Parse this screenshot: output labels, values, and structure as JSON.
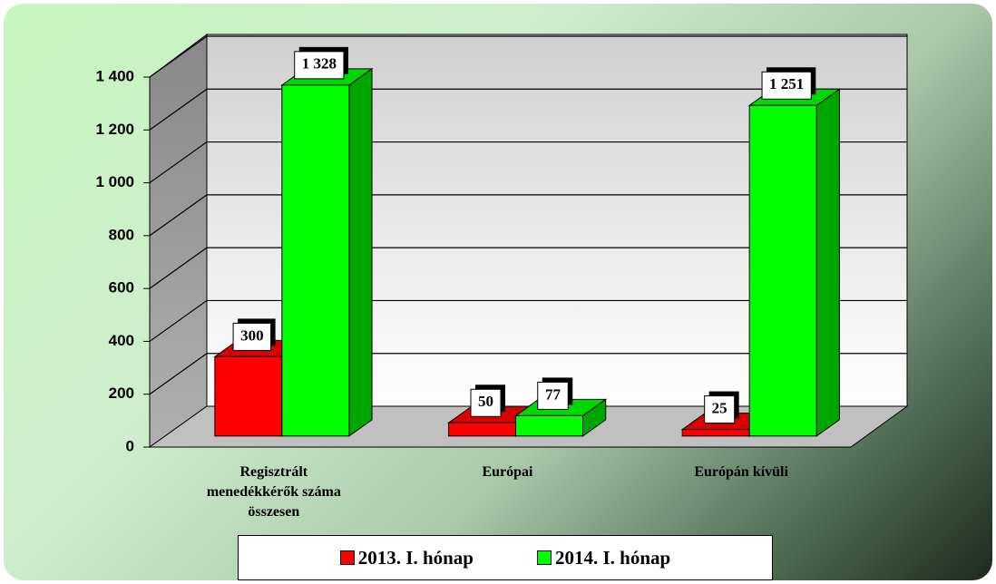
{
  "chart_data": {
    "type": "bar3d",
    "categories": [
      "Regisztrált menedékkérők száma összesen",
      "Európai",
      "Európán kívüli"
    ],
    "series": [
      {
        "name": "2013. I. hónap",
        "color": "#ff0000",
        "values": [
          300,
          50,
          25
        ]
      },
      {
        "name": "2014. I. hónap",
        "color": "#00ff00",
        "values": [
          1328,
          77,
          1251
        ],
        "value_labels": [
          "1 328",
          "77",
          "1 251"
        ]
      }
    ],
    "ylim": [
      0,
      1400
    ],
    "yticks": [
      0,
      200,
      400,
      600,
      800,
      {
        "value": 1000,
        "label": "1 000"
      },
      {
        "value": 1200,
        "label": "1 200"
      },
      {
        "value": 1400,
        "label": "1 400"
      }
    ],
    "grid": true,
    "legend": "bottom"
  }
}
